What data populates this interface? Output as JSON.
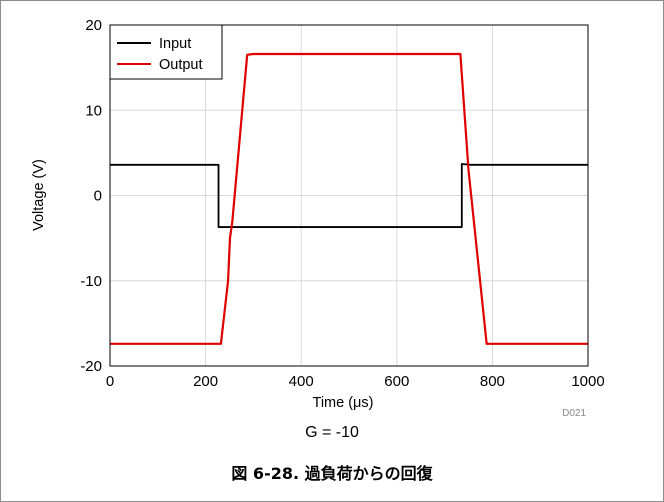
{
  "chart_data": {
    "type": "line",
    "title": "",
    "xlabel": "Time (μs)",
    "ylabel": "Voltage (V)",
    "xlim": [
      0,
      1000
    ],
    "ylim": [
      -20,
      20
    ],
    "x_ticks": [
      0,
      200,
      400,
      600,
      800,
      1000
    ],
    "y_ticks": [
      -20,
      -10,
      0,
      10,
      20
    ],
    "x_tick_labels": [
      "0",
      "200",
      "400",
      "600",
      "800",
      "1000"
    ],
    "y_tick_labels": [
      "-20",
      "-10",
      "0",
      "10",
      "20"
    ],
    "grid": true,
    "legend_position": "top-left",
    "series": [
      {
        "name": "Input",
        "color": "#000000",
        "points": [
          [
            0,
            3.6
          ],
          [
            227,
            3.6
          ],
          [
            227,
            -3.7
          ],
          [
            736,
            -3.7
          ],
          [
            736,
            3.7
          ],
          [
            755,
            3.6
          ],
          [
            1000,
            3.6
          ]
        ]
      },
      {
        "name": "Output",
        "color": "#e00000",
        "points": [
          [
            0,
            -17.4
          ],
          [
            232,
            -17.4
          ],
          [
            247,
            -10.0
          ],
          [
            251,
            -5.0
          ],
          [
            256,
            -3.0
          ],
          [
            287,
            16.5
          ],
          [
            300,
            16.6
          ],
          [
            600,
            16.6
          ],
          [
            733,
            16.6
          ],
          [
            750,
            3.0
          ],
          [
            788,
            -17.4
          ],
          [
            1000,
            -17.4
          ]
        ]
      }
    ],
    "annotation_id": "D021"
  },
  "figure": {
    "condition_text": "G = -10",
    "caption": "図 6-28. 過負荷からの回復"
  }
}
